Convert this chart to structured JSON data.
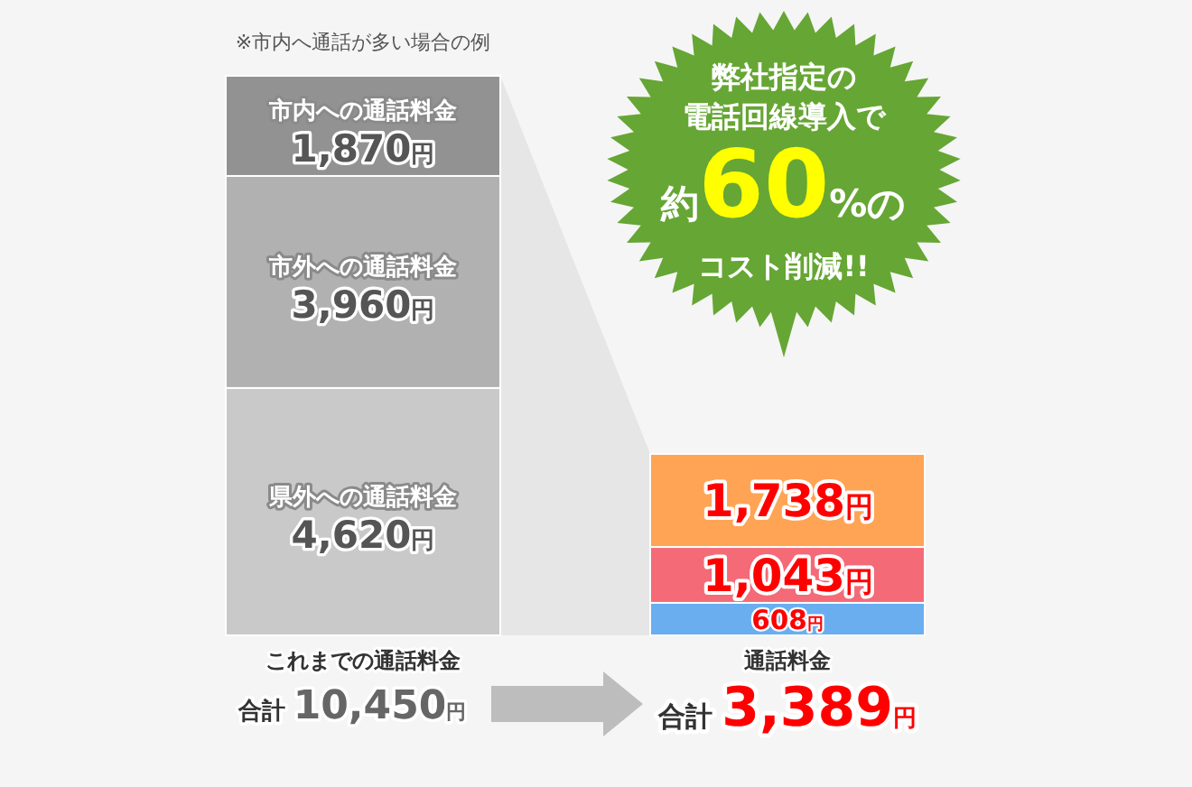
{
  "chart_data": {
    "type": "bar",
    "stacked": true,
    "categories": [
      "これまでの通話料金",
      "通話料金"
    ],
    "series": [
      {
        "name": "県外への通話料金",
        "colors": [
          "#c9c9c9",
          "#6aaef0"
        ],
        "values": [
          4620,
          608
        ],
        "value_labels": [
          "4,620円",
          "608円"
        ]
      },
      {
        "name": "市外への通話料金",
        "colors": [
          "#b1b1b1",
          "#f46a77"
        ],
        "values": [
          3960,
          1043
        ],
        "value_labels": [
          "3,960円",
          "1,043円"
        ]
      },
      {
        "name": "市内への通話料金",
        "colors": [
          "#929292",
          "#ffa455"
        ],
        "values": [
          1870,
          1738
        ],
        "value_labels": [
          "1,870円",
          "1,738円"
        ]
      }
    ],
    "totals": [
      "合計 10,450円",
      "合計 3,389円"
    ],
    "annotations": [
      "※市内へ通話が多い場合の例",
      "弊社指定の",
      "電話回線導入で",
      "約**60**%の",
      "コスト削減!!"
    ]
  }
}
